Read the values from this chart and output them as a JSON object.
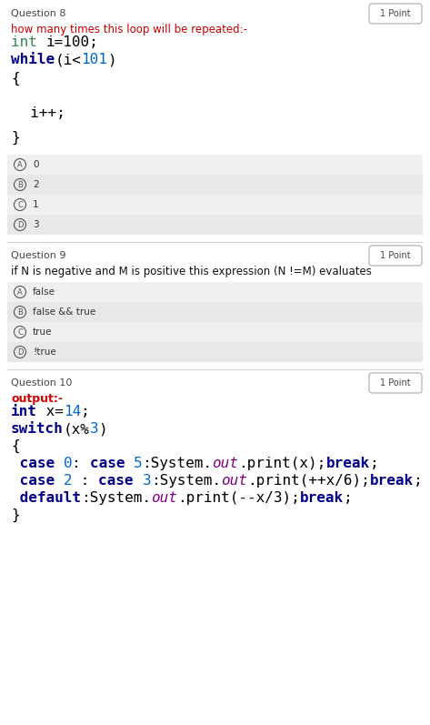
{
  "bg_color": "#ffffff",
  "q8_label": "Question 8",
  "q9_label": "Question 9",
  "q10_label": "Question 10",
  "point_label": "1 Point",
  "q8_prompt_red": "how many times this loop will be repeated:-",
  "q8_options": [
    {
      "label": "A",
      "text": "0"
    },
    {
      "label": "B",
      "text": "2"
    },
    {
      "label": "C",
      "text": "1"
    },
    {
      "label": "D",
      "text": "3"
    }
  ],
  "q9_prompt": "if N is negative and M is positive this expression (N !=M) evaluates",
  "q9_options": [
    {
      "label": "A",
      "text": "false"
    },
    {
      "label": "B",
      "text": "false && true"
    },
    {
      "label": "C",
      "text": "true"
    },
    {
      "label": "D",
      "text": "!true"
    }
  ],
  "q10_prompt_red": "output:-",
  "separator_color": "#cccccc",
  "option_colors": [
    "#f0f0f0",
    "#e8e8e8"
  ],
  "badge_edge_color": "#aaaaaa",
  "question_label_color": "#444444",
  "prompt_color": "#cc0000",
  "code_dark_blue": "#00008B",
  "code_green": "#2e8b57",
  "code_number_blue": "#0066cc",
  "code_purple_italic": "#800080",
  "code_black": "#000000",
  "option_text_color": "#333333",
  "option_circle_color": "#555555"
}
